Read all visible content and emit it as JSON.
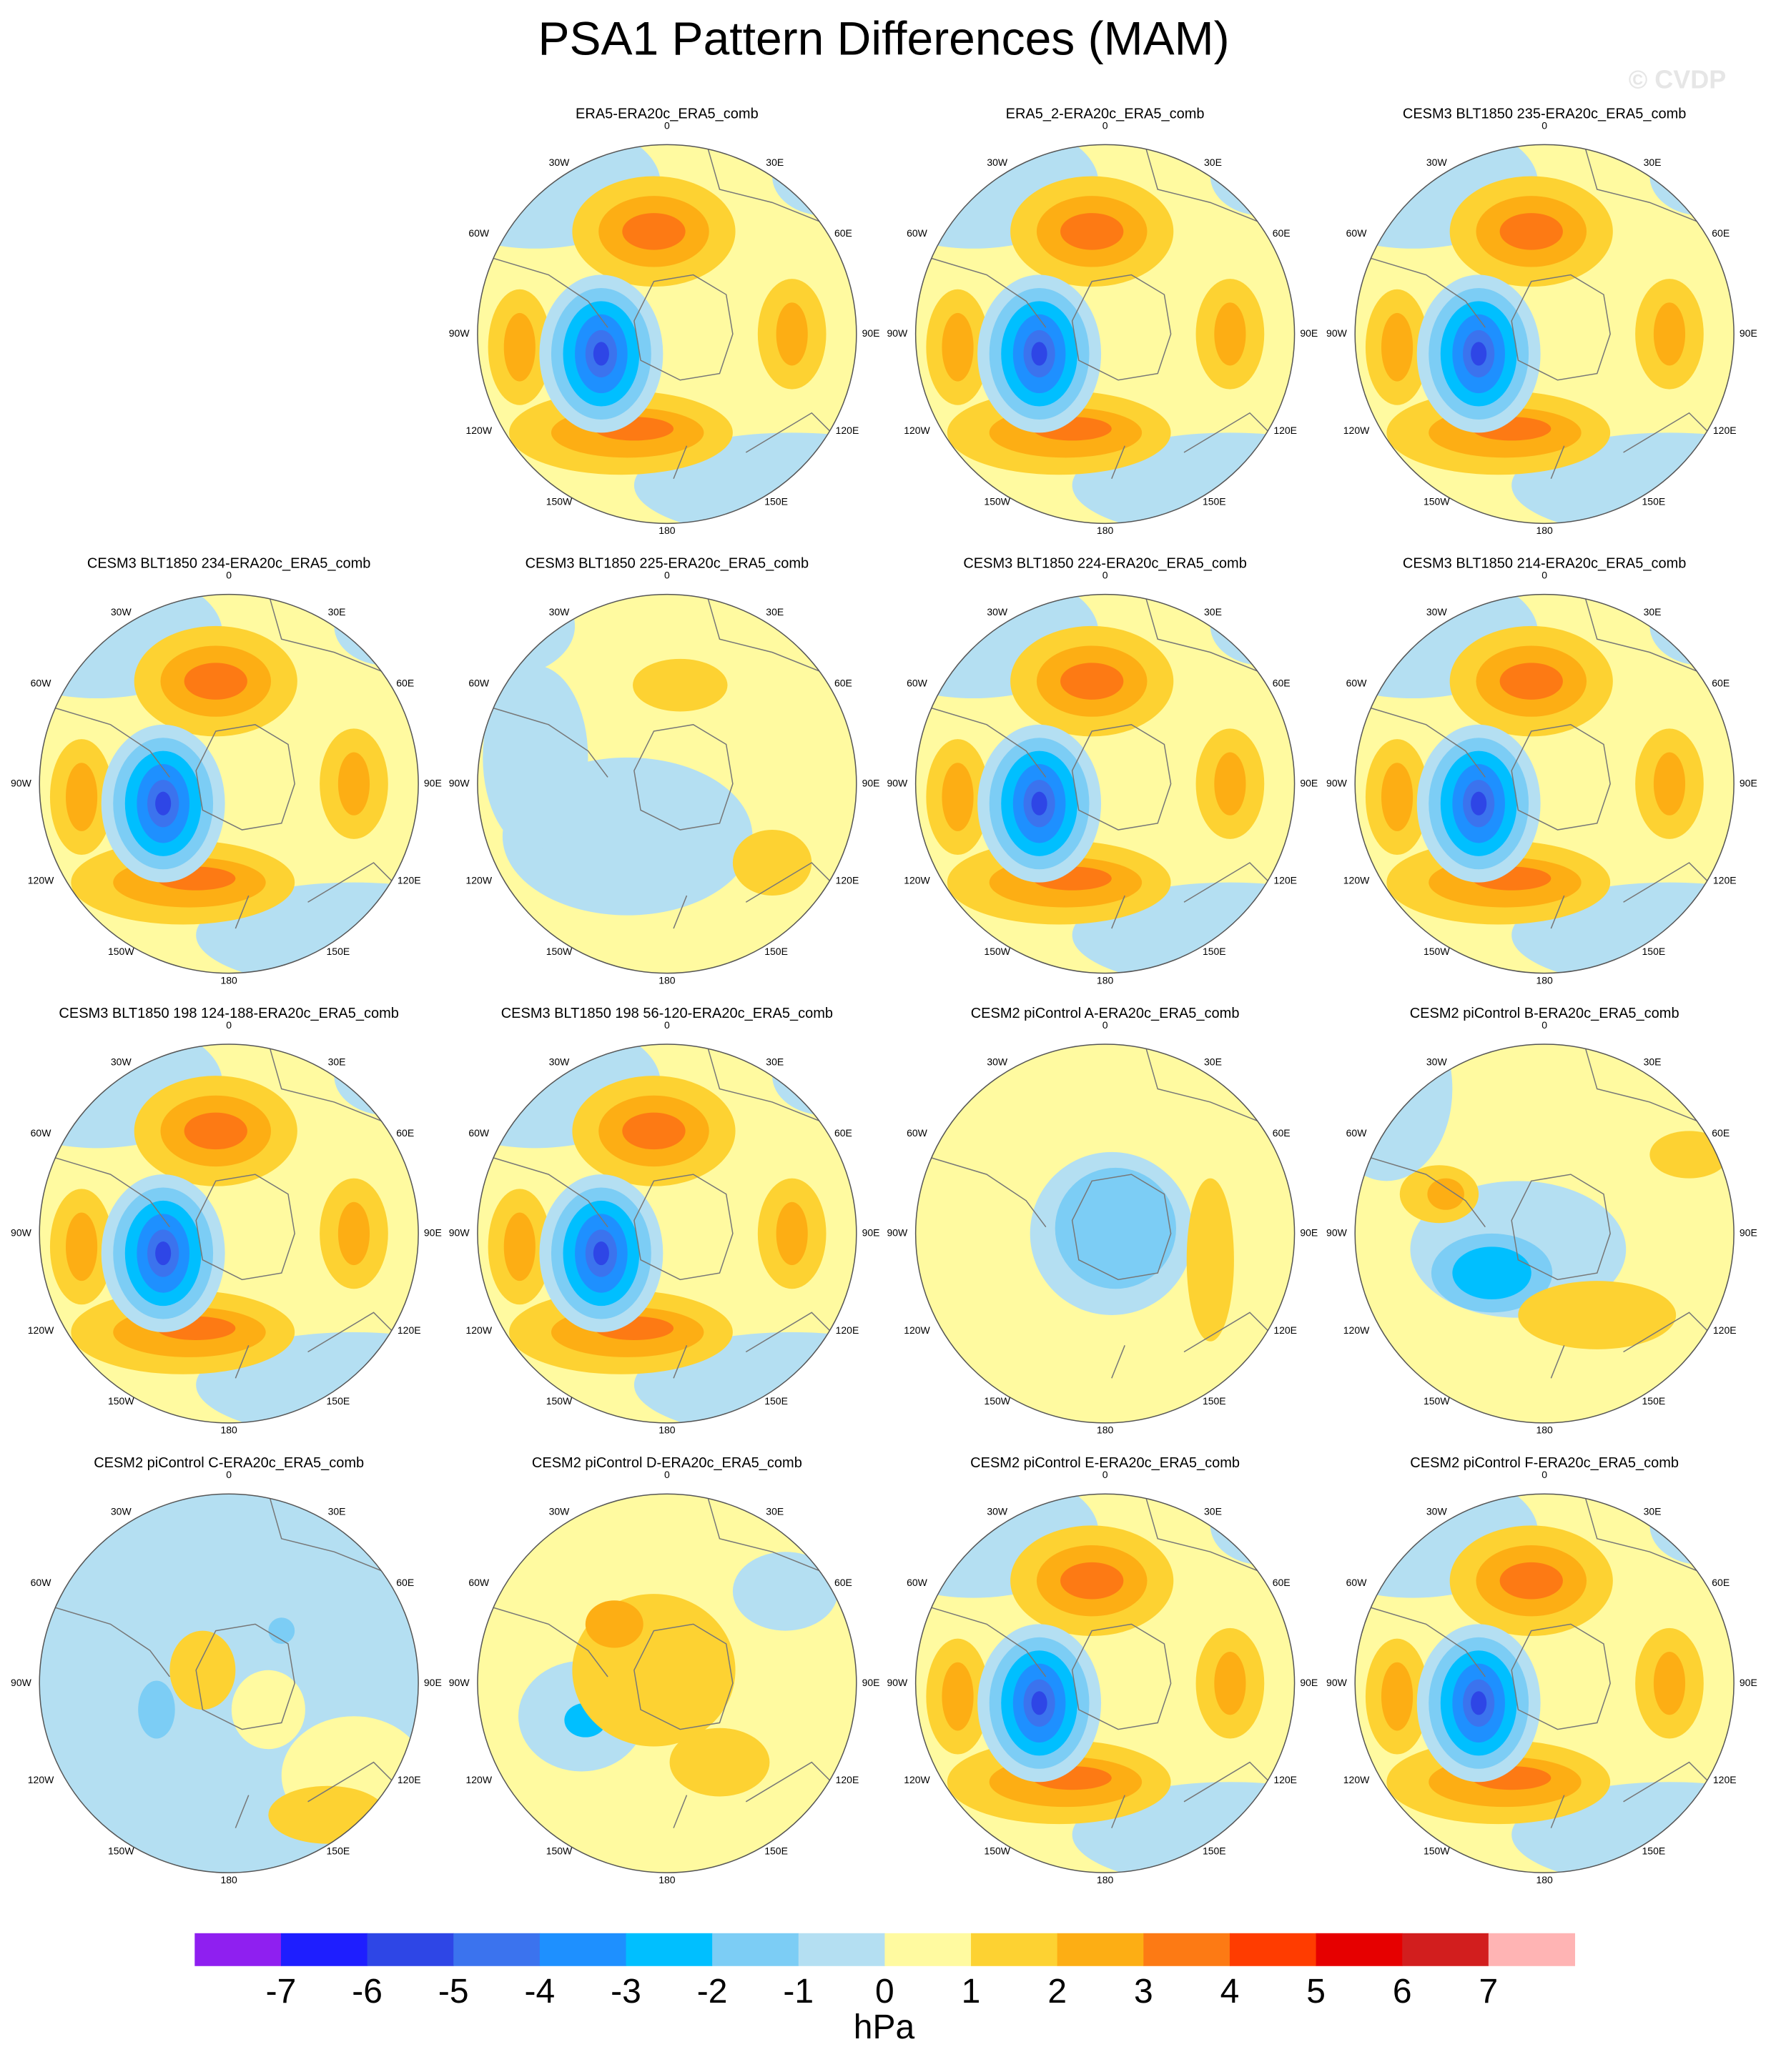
{
  "header": {
    "title": "PSA1 Pattern Differences (MAM)",
    "watermark": "© CVDP"
  },
  "longitude_labels": [
    "0",
    "30W",
    "30E",
    "60W",
    "60E",
    "90W",
    "90E",
    "120W",
    "120E",
    "150W",
    "150E",
    "180"
  ],
  "panels": [
    {
      "title": "ERA5-ERA20c_ERA5_comb"
    },
    {
      "title": "ERA5_2-ERA20c_ERA5_comb"
    },
    {
      "title": "CESM3 BLT1850 235-ERA20c_ERA5_comb"
    },
    {
      "title": "CESM3 BLT1850 234-ERA20c_ERA5_comb"
    },
    {
      "title": "CESM3 BLT1850 225-ERA20c_ERA5_comb"
    },
    {
      "title": "CESM3 BLT1850 224-ERA20c_ERA5_comb"
    },
    {
      "title": "CESM3 BLT1850 214-ERA20c_ERA5_comb"
    },
    {
      "title": "CESM3 BLT1850 198 124-188-ERA20c_ERA5_comb"
    },
    {
      "title": "CESM3 BLT1850 198 56-120-ERA20c_ERA5_comb"
    },
    {
      "title": "CESM2 piControl A-ERA20c_ERA5_comb"
    },
    {
      "title": "CESM2 piControl B-ERA20c_ERA5_comb"
    },
    {
      "title": "CESM2 piControl C-ERA20c_ERA5_comb"
    },
    {
      "title": "CESM2 piControl D-ERA20c_ERA5_comb"
    },
    {
      "title": "CESM2 piControl E-ERA20c_ERA5_comb"
    },
    {
      "title": "CESM2 piControl F-ERA20c_ERA5_comb"
    }
  ],
  "colorbar": {
    "colors": [
      "#8f1ff0",
      "#1e1eff",
      "#2e46e6",
      "#3b73ee",
      "#1e90ff",
      "#00bfff",
      "#7ccdf5",
      "#b4dff2",
      "#fffaa0",
      "#fdd232",
      "#fdae14",
      "#fd7a14",
      "#ff3c00",
      "#e60000",
      "#d21e1e",
      "#ffb4b4"
    ],
    "ticks": [
      -7,
      -6,
      -5,
      -4,
      -3,
      -2,
      -1,
      0,
      1,
      2,
      3,
      4,
      5,
      6,
      7
    ],
    "unit": "hPa"
  }
}
